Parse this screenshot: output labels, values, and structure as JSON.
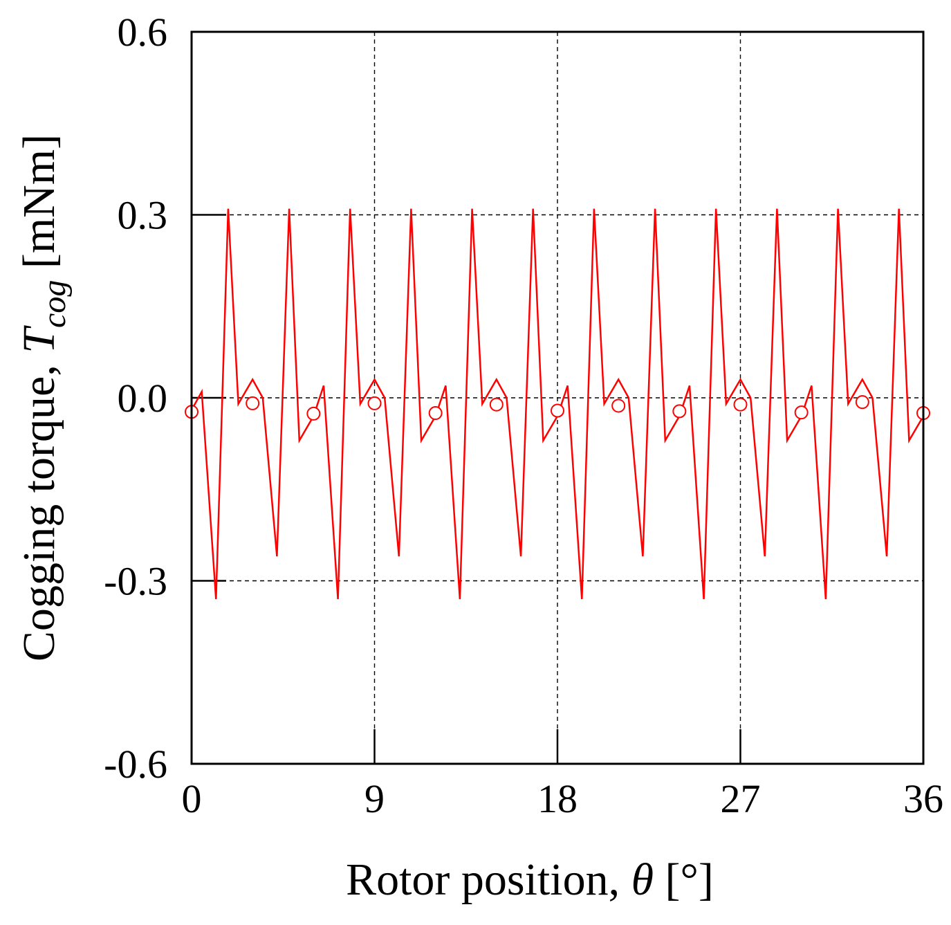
{
  "chart_data": {
    "type": "line",
    "xlabel_prefix": "Rotor position, ",
    "xlabel_symbol": "θ",
    "xlabel_suffix": " [°]",
    "ylabel_prefix": "Cogging torque, ",
    "ylabel_symbol": "T",
    "ylabel_subscript": "cog",
    "ylabel_suffix": " [mNm]",
    "xlim": [
      0,
      36
    ],
    "ylim": [
      -0.6,
      0.6
    ],
    "xticks": [
      0,
      9,
      18,
      27,
      36
    ],
    "xtick_labels": [
      "0",
      "9",
      "18",
      "27",
      "36"
    ],
    "yticks": [
      -0.6,
      -0.3,
      0.0,
      0.3,
      0.6
    ],
    "ytick_labels": [
      "-0.6",
      "-0.3",
      "0.0",
      "0.3",
      "0.6"
    ],
    "grid": true,
    "legend": "none",
    "series": [
      {
        "color": "#ff0000",
        "style": "line",
        "x": [
          0.0,
          0.5,
          1.2,
          1.8,
          2.3,
          3.0,
          3.5,
          4.2,
          4.8,
          5.3,
          6.0,
          6.5,
          7.2,
          7.8,
          8.3,
          9.0,
          9.5,
          10.2,
          10.8,
          11.3,
          12.0,
          12.5,
          13.2,
          13.8,
          14.3,
          15.0,
          15.5,
          16.2,
          16.8,
          17.3,
          18.0,
          18.5,
          19.2,
          19.8,
          20.3,
          21.0,
          21.5,
          22.2,
          22.8,
          23.3,
          24.0,
          24.5,
          25.2,
          25.8,
          26.3,
          27.0,
          27.5,
          28.2,
          28.8,
          29.3,
          30.0,
          30.5,
          31.2,
          31.8,
          32.3,
          33.0,
          33.5,
          34.2,
          34.8,
          35.3,
          36.0
        ],
        "y": [
          -0.02,
          0.01,
          -0.33,
          0.31,
          -0.01,
          0.03,
          0.0,
          -0.26,
          0.31,
          -0.07,
          -0.03,
          0.02,
          -0.33,
          0.31,
          -0.01,
          0.03,
          0.0,
          -0.26,
          0.31,
          -0.07,
          -0.03,
          0.02,
          -0.33,
          0.31,
          -0.01,
          0.03,
          0.0,
          -0.26,
          0.31,
          -0.07,
          -0.03,
          0.02,
          -0.33,
          0.31,
          -0.01,
          0.03,
          0.0,
          -0.26,
          0.31,
          -0.07,
          -0.03,
          0.02,
          -0.33,
          0.31,
          -0.01,
          0.03,
          0.0,
          -0.26,
          0.31,
          -0.07,
          -0.03,
          0.02,
          -0.33,
          0.31,
          -0.01,
          0.03,
          0.0,
          -0.26,
          0.31,
          -0.07,
          -0.03
        ]
      },
      {
        "color": "#ff0000",
        "style": "markers-open-circle",
        "x": [
          0,
          3,
          6,
          9,
          12,
          15,
          18,
          21,
          24,
          27,
          30,
          33,
          36
        ],
        "y": [
          -0.023,
          -0.009,
          -0.026,
          -0.009,
          -0.025,
          -0.011,
          -0.021,
          -0.013,
          -0.022,
          -0.011,
          -0.024,
          -0.007,
          -0.025
        ]
      }
    ]
  }
}
